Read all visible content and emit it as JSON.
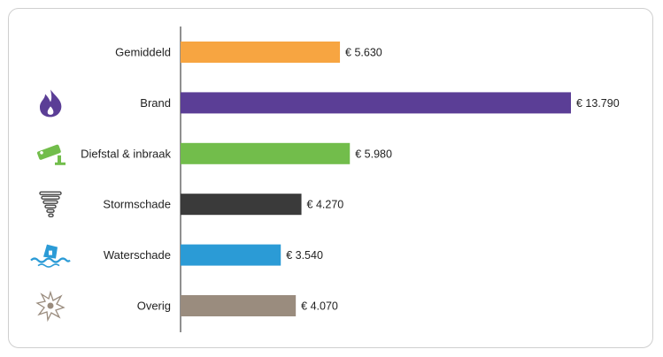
{
  "chart_data": {
    "type": "bar",
    "orientation": "horizontal",
    "categories": [
      "Gemiddeld",
      "Brand",
      "Diefstal & inbraak",
      "Stormschade",
      "Waterschade",
      "Overig"
    ],
    "values": [
      5630,
      13790,
      5980,
      4270,
      3540,
      4070
    ],
    "value_labels": [
      "€ 5.630",
      "€ 13.790",
      "€ 5.980",
      "€ 4.270",
      "€ 3.540",
      "€ 4.070"
    ],
    "colors": [
      "#f7a541",
      "#5b3e96",
      "#72bd4b",
      "#3a3a3a",
      "#2b9bd6",
      "#9a8c7e"
    ],
    "icons": [
      "",
      "flame-icon",
      "security-camera-icon",
      "tornado-icon",
      "flooded-house-icon",
      "explosion-icon"
    ],
    "icon_colors": [
      "",
      "#5b3e96",
      "#72bd4b",
      "#444444",
      "#2b9bd6",
      "#9a8c7e"
    ],
    "title": "",
    "xlabel": "",
    "ylabel": "",
    "xlim": [
      0,
      13790
    ],
    "grid": false,
    "legend": "none"
  }
}
